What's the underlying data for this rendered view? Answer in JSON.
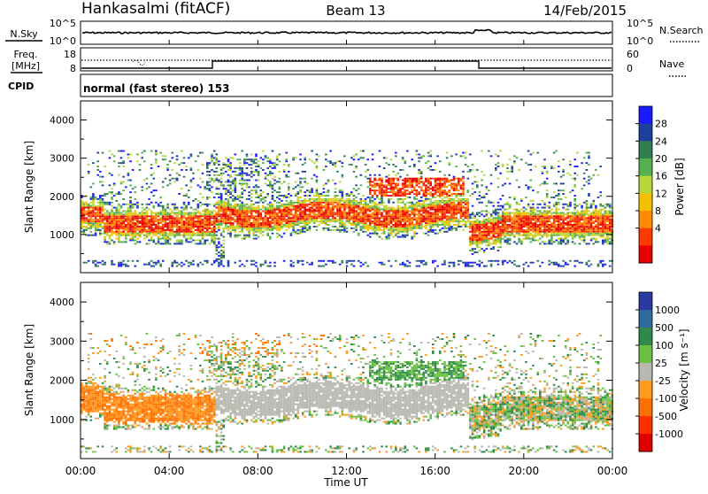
{
  "header": {
    "station": "Hankasalmi (fitACF)",
    "beam": "Beam 13",
    "date": "14/Feb/2015"
  },
  "top_panels": {
    "nsky_label": "N.Sky",
    "nsky_ticks": [
      "10^5",
      "10^0"
    ],
    "nsearch_label": "N.Search",
    "nsearch_ticks": [
      "10^5",
      "10^0"
    ],
    "freq_label": "Freq.",
    "freq_unit": "[MHz]",
    "freq_ticks": [
      "18",
      "8"
    ],
    "nave_label": "Nave",
    "nave_ticks": [
      "60",
      "0"
    ],
    "cpid_label": "CPID",
    "cpid_text": "normal (fast stereo) 153"
  },
  "time_axis": {
    "title": "Time UT",
    "ticks": [
      "00:00",
      "04:00",
      "08:00",
      "12:00",
      "16:00",
      "20:00",
      "00:00"
    ]
  },
  "colors": {
    "power_scale": [
      "#1a1aff",
      "#1f3f9f",
      "#2f7f4f",
      "#57b04f",
      "#b8d83a",
      "#f5c000",
      "#ff8a00",
      "#ff3a00",
      "#e80000"
    ],
    "velocity_scale": [
      "#2a3aa0",
      "#2f6a9f",
      "#2f8a4a",
      "#6ac040",
      "#b8b8b0",
      "#ff9a20",
      "#ff7000",
      "#ff3000",
      "#e00000"
    ]
  },
  "chart_data": [
    {
      "type": "heatmap",
      "xlabel": "Time UT",
      "ylabel": "Slant Range [km]",
      "yticks": [
        "4000",
        "3000",
        "2000",
        "1000"
      ],
      "ylim": [
        0,
        4500
      ],
      "colorbar": {
        "label": "Power [dB]",
        "ticks": [
          "28",
          "24",
          "20",
          "16",
          "12",
          "8",
          "4"
        ]
      }
    },
    {
      "type": "heatmap",
      "xlabel": "Time UT",
      "ylabel": "Slant Range [km]",
      "yticks": [
        "4000",
        "3000",
        "2000",
        "1000"
      ],
      "ylim": [
        0,
        4500
      ],
      "colorbar": {
        "label": "Velocity [m s⁻¹]",
        "ticks": [
          "1000",
          "500",
          "100",
          "25",
          "-25",
          "-100",
          "-500",
          "-1000"
        ]
      }
    }
  ]
}
